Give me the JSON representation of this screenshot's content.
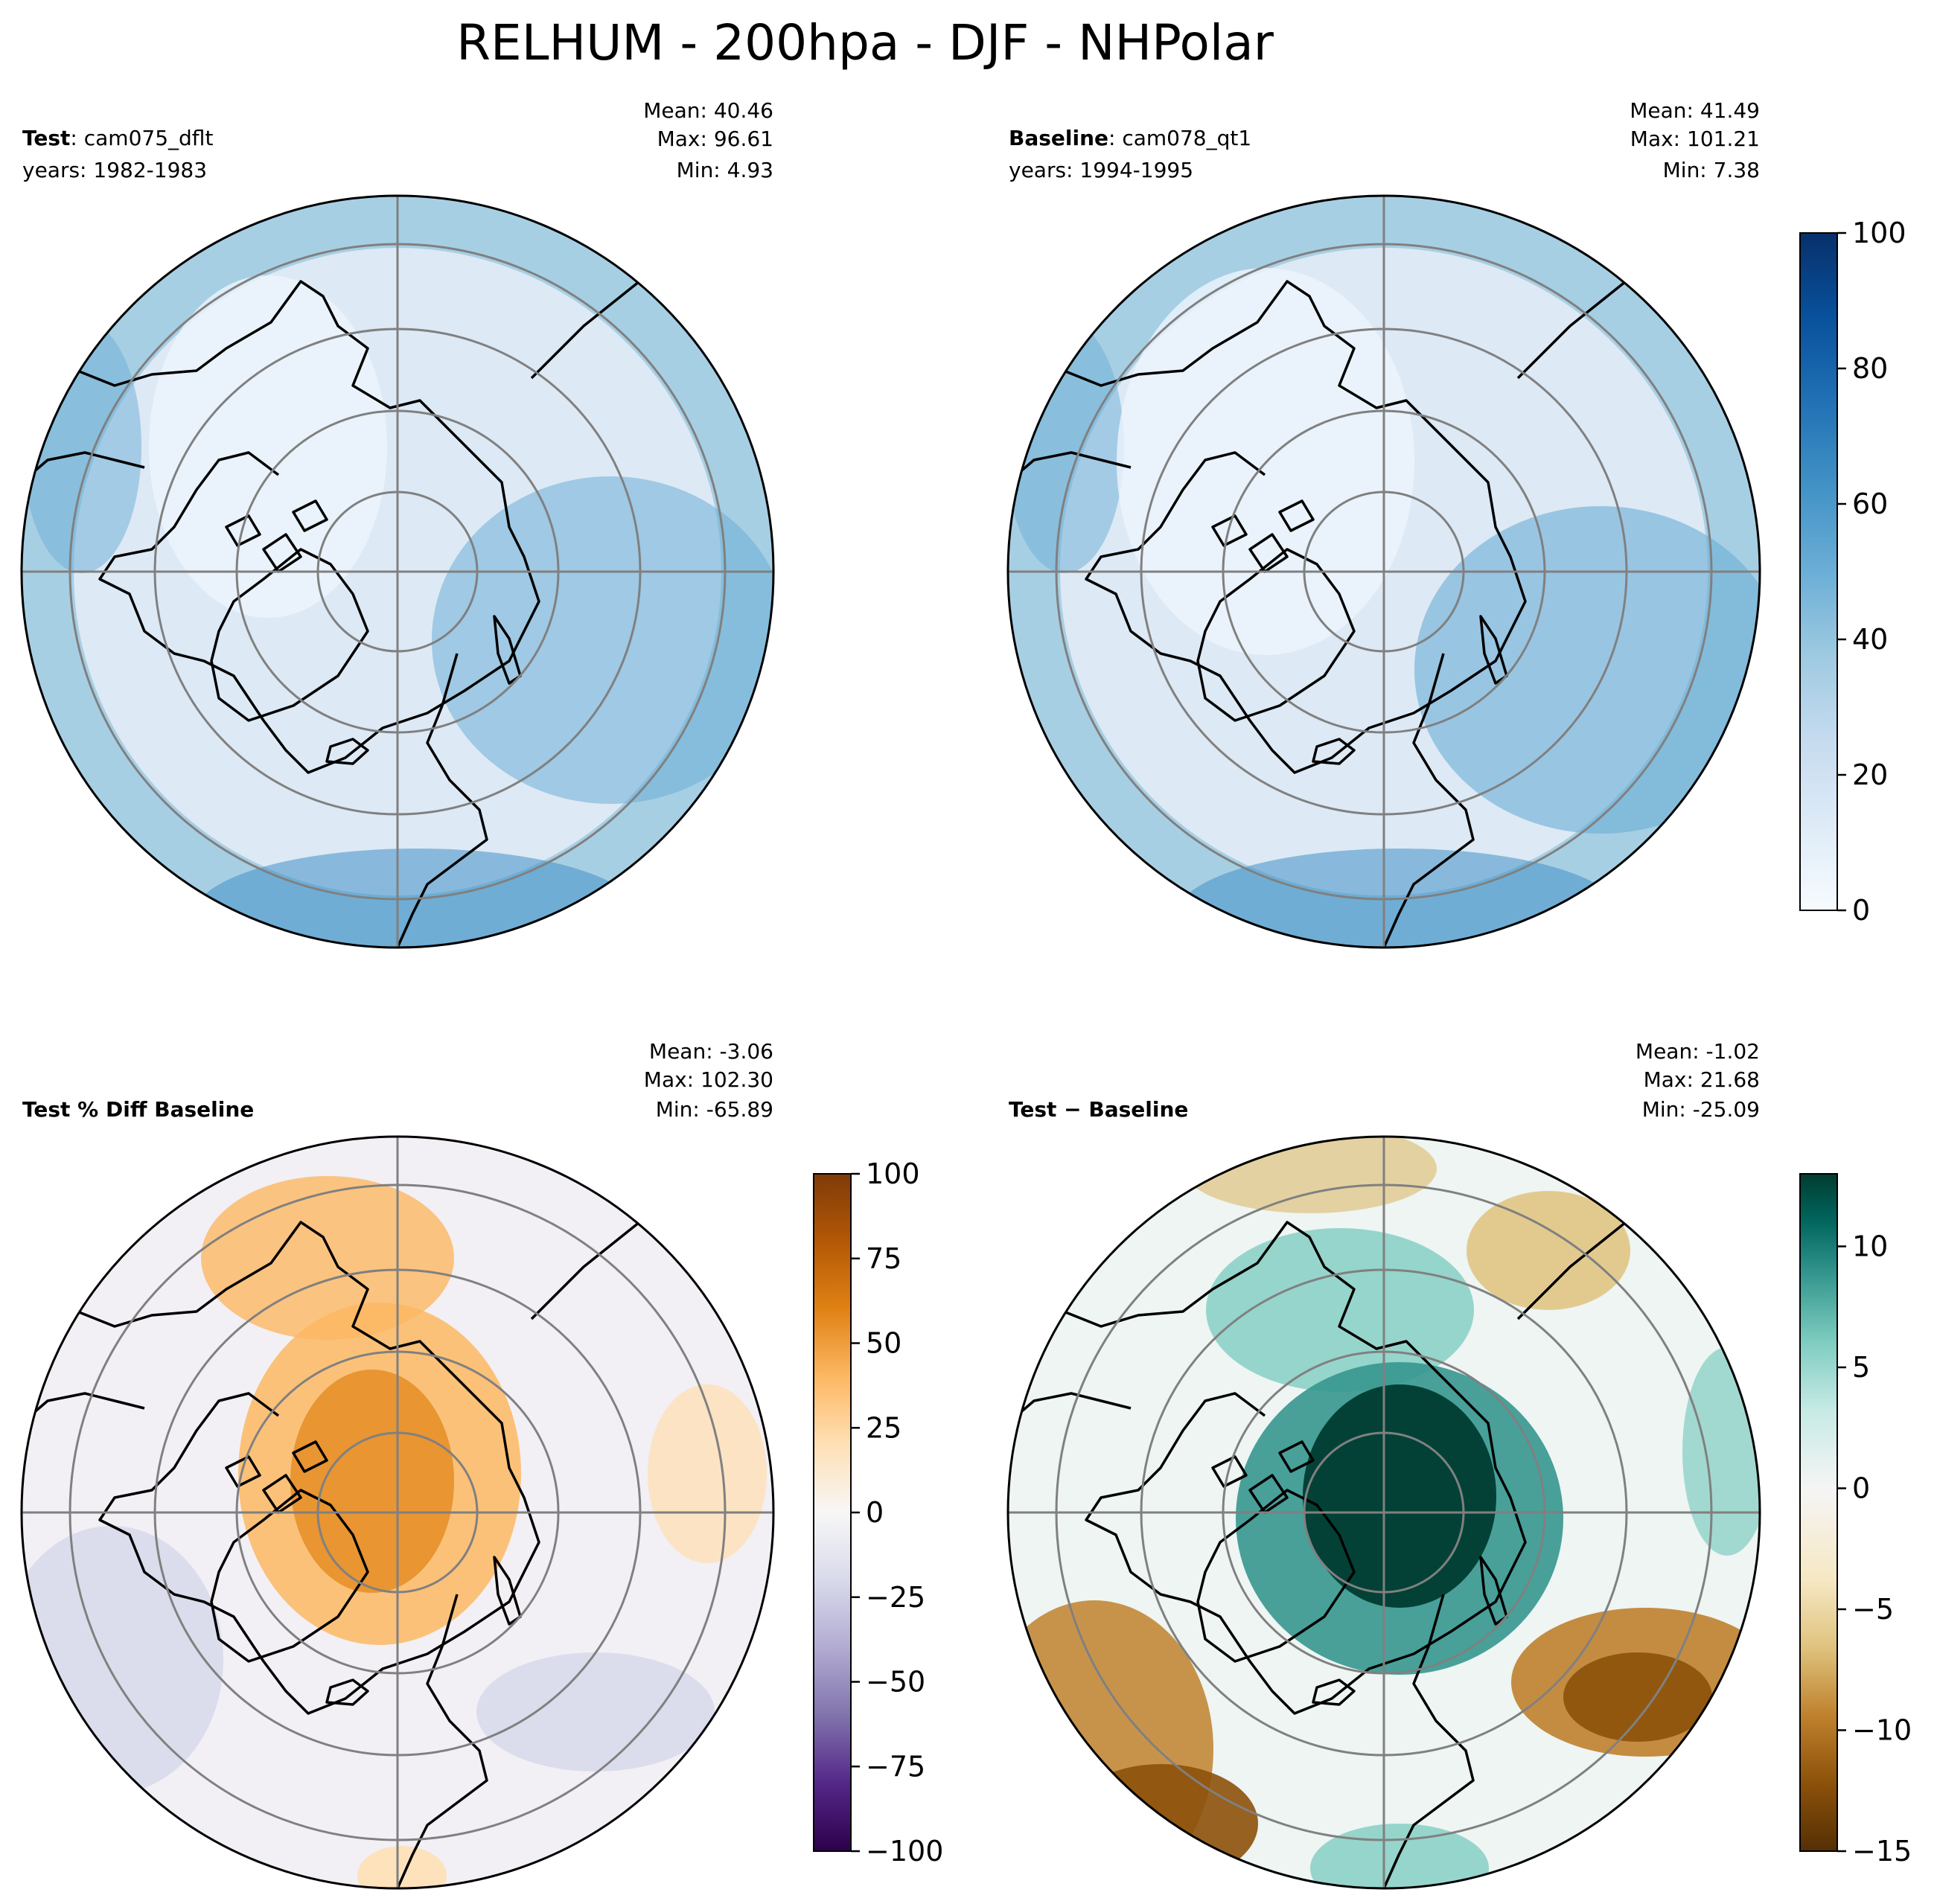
{
  "figure": {
    "title": "RELHUM - 200hpa - DJF - NHPolar"
  },
  "colors": {
    "grid": "#808080",
    "coast": "#000000"
  },
  "panels": [
    {
      "id": "test",
      "label_bold": "Test",
      "label_rest": ": cam075_dflt",
      "years": "years: 1982-1983",
      "mean": "Mean: 40.46",
      "max": "Max: 96.61",
      "min": "Min:  4.93",
      "colormap": "Blues"
    },
    {
      "id": "baseline",
      "label_bold": "Baseline",
      "label_rest": ": cam078_qt1",
      "years": "years: 1994-1995",
      "mean": "Mean: 41.49",
      "max": "Max: 101.21",
      "min": "Min:  7.38",
      "colormap": "Blues"
    },
    {
      "id": "pctdiff",
      "label_bold": "Test % Diff Baseline",
      "label_rest": "",
      "years": "",
      "mean": "Mean: -3.06",
      "max": "Max: 102.30",
      "min": "Min: -65.89",
      "colormap": "PuOr_r"
    },
    {
      "id": "diff",
      "label_bold": "Test − Baseline",
      "label_rest": "",
      "years": "",
      "mean": "Mean: -1.02",
      "max": "Max: 21.68",
      "min": "Min: -25.09",
      "colormap": "BrBG"
    }
  ],
  "colorbars": [
    {
      "id": "cb-top",
      "colormap": "Blues",
      "range": [
        0,
        100
      ],
      "ticks": [
        "0",
        "20",
        "40",
        "60",
        "80",
        "100"
      ]
    },
    {
      "id": "cb-pct",
      "colormap": "PuOr_r",
      "range": [
        -100,
        100
      ],
      "ticks": [
        "−100",
        "−75",
        "−50",
        "−25",
        "0",
        "25",
        "50",
        "75",
        "100"
      ]
    },
    {
      "id": "cb-diff",
      "colormap": "BrBG",
      "range": [
        -15,
        13
      ],
      "ticks": [
        "−15",
        "−10",
        "−5",
        "0",
        "5",
        "10"
      ],
      "tick_values": [
        -15,
        -10,
        -5,
        0,
        5,
        10
      ]
    }
  ]
}
